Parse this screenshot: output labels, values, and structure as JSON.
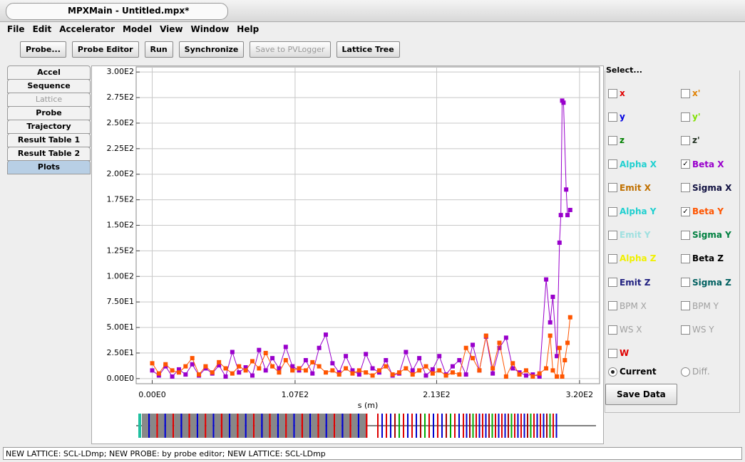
{
  "window": {
    "title": "MPXMain - Untitled.mpx*"
  },
  "menu": [
    "File",
    "Edit",
    "Accelerator",
    "Model",
    "View",
    "Window",
    "Help"
  ],
  "toolbar": [
    {
      "label": "Probe...",
      "enabled": true
    },
    {
      "label": "Probe Editor",
      "enabled": true
    },
    {
      "label": "Run",
      "enabled": true
    },
    {
      "label": "Synchronize",
      "enabled": true
    },
    {
      "label": "Save to PVLogger",
      "enabled": false
    },
    {
      "label": "Lattice Tree",
      "enabled": true
    }
  ],
  "tabs": [
    {
      "label": "Accel",
      "enabled": true,
      "selected": false
    },
    {
      "label": "Sequence",
      "enabled": true,
      "selected": false
    },
    {
      "label": "Lattice",
      "enabled": false,
      "selected": false
    },
    {
      "label": "Probe",
      "enabled": true,
      "selected": false
    },
    {
      "label": "Trajectory",
      "enabled": true,
      "selected": false
    },
    {
      "label": "Result Table 1",
      "enabled": true,
      "selected": false
    },
    {
      "label": "Result Table 2",
      "enabled": true,
      "selected": false
    },
    {
      "label": "Plots",
      "enabled": true,
      "selected": true
    }
  ],
  "chart_data": {
    "type": "line",
    "xlabel": "s (m)",
    "xlim": [
      -12,
      335
    ],
    "ylim": [
      -5,
      305
    ],
    "grid": true,
    "xticks": [
      {
        "value": 0,
        "label": "0.00E0"
      },
      {
        "value": 107,
        "label": "1.07E2"
      },
      {
        "value": 213,
        "label": "2.13E2"
      },
      {
        "value": 320,
        "label": "3.20E2"
      }
    ],
    "yticks": [
      {
        "value": 0,
        "label": "0.00E0"
      },
      {
        "value": 25,
        "label": "2.50E1"
      },
      {
        "value": 50,
        "label": "5.00E1"
      },
      {
        "value": 75,
        "label": "7.50E1"
      },
      {
        "value": 100,
        "label": "1.00E2"
      },
      {
        "value": 125,
        "label": "1.25E2"
      },
      {
        "value": 150,
        "label": "1.50E2"
      },
      {
        "value": 175,
        "label": "1.75E2"
      },
      {
        "value": 200,
        "label": "2.00E2"
      },
      {
        "value": 225,
        "label": "2.25E2"
      },
      {
        "value": 250,
        "label": "2.50E2"
      },
      {
        "value": 275,
        "label": "2.75E2"
      },
      {
        "value": 300,
        "label": "3.00E2"
      }
    ],
    "series": [
      {
        "color": "#9900cc",
        "x": [
          0,
          5,
          10,
          15,
          20,
          25,
          30,
          35,
          40,
          45,
          50,
          55,
          60,
          65,
          70,
          75,
          80,
          85,
          90,
          95,
          100,
          105,
          110,
          115,
          120,
          125,
          130,
          135,
          140,
          145,
          150,
          155,
          160,
          165,
          170,
          175,
          180,
          185,
          190,
          195,
          200,
          205,
          210,
          215,
          220,
          225,
          230,
          235,
          240,
          245,
          250,
          255,
          260,
          265,
          270,
          275,
          280,
          285,
          290,
          295,
          298,
          300,
          303,
          305,
          306,
          307,
          308,
          310,
          311,
          313
        ],
        "values": [
          8,
          3,
          12,
          2,
          9,
          4,
          14,
          3,
          10,
          5,
          13,
          2,
          26,
          6,
          11,
          3,
          28,
          8,
          20,
          10,
          31,
          12,
          8,
          18,
          5,
          30,
          43,
          15,
          6,
          22,
          8,
          4,
          24,
          10,
          6,
          18,
          3,
          5,
          26,
          8,
          20,
          3,
          9,
          22,
          4,
          12,
          18,
          4,
          33,
          8,
          41,
          5,
          30,
          40,
          10,
          6,
          3,
          4,
          2,
          97,
          55,
          80,
          22,
          133,
          160,
          272,
          270,
          185,
          160,
          165
        ]
      },
      {
        "color": "#ff5500",
        "x": [
          0,
          5,
          10,
          15,
          20,
          25,
          30,
          35,
          40,
          45,
          50,
          55,
          60,
          65,
          70,
          75,
          80,
          85,
          90,
          95,
          100,
          105,
          110,
          115,
          120,
          125,
          130,
          135,
          140,
          145,
          150,
          155,
          160,
          165,
          170,
          175,
          180,
          185,
          190,
          195,
          200,
          205,
          210,
          215,
          220,
          225,
          230,
          235,
          240,
          245,
          250,
          255,
          260,
          265,
          270,
          275,
          280,
          285,
          290,
          295,
          298,
          300,
          303,
          305,
          307,
          309,
          311,
          313
        ],
        "values": [
          15,
          5,
          14,
          8,
          6,
          12,
          20,
          4,
          12,
          6,
          16,
          10,
          5,
          12,
          8,
          17,
          10,
          25,
          12,
          6,
          18,
          8,
          10,
          8,
          16,
          12,
          6,
          8,
          4,
          10,
          5,
          8,
          6,
          3,
          8,
          12,
          4,
          6,
          10,
          4,
          8,
          12,
          5,
          8,
          3,
          6,
          4,
          30,
          20,
          8,
          42,
          10,
          35,
          2,
          15,
          4,
          8,
          2,
          5,
          10,
          42,
          8,
          2,
          30,
          2,
          18,
          35,
          60
        ]
      }
    ]
  },
  "select_panel": {
    "title": "Select...",
    "options": [
      {
        "label": "x",
        "color": "#e00000",
        "checked": false,
        "enabled": true
      },
      {
        "label": "x'",
        "color": "#e08000",
        "checked": false,
        "enabled": true
      },
      {
        "label": "y",
        "color": "#0000e0",
        "checked": false,
        "enabled": true
      },
      {
        "label": "y'",
        "color": "#80e000",
        "checked": false,
        "enabled": true
      },
      {
        "label": "z",
        "color": "#008000",
        "checked": false,
        "enabled": true
      },
      {
        "label": "z'",
        "color": "#203020",
        "checked": false,
        "enabled": true
      },
      {
        "label": "Alpha X",
        "color": "#20d0d0",
        "checked": false,
        "enabled": true
      },
      {
        "label": "Beta X",
        "color": "#9900cc",
        "checked": true,
        "enabled": true
      },
      {
        "label": "Emit X",
        "color": "#c07000",
        "checked": false,
        "enabled": true
      },
      {
        "label": "Sigma X",
        "color": "#101040",
        "checked": false,
        "enabled": true
      },
      {
        "label": "Alpha Y",
        "color": "#20d0d0",
        "checked": false,
        "enabled": true
      },
      {
        "label": "Beta Y",
        "color": "#ff5500",
        "checked": true,
        "enabled": true
      },
      {
        "label": "Emit Y",
        "color": "#a0e0e0",
        "checked": false,
        "enabled": true
      },
      {
        "label": "Sigma Y",
        "color": "#008040",
        "checked": false,
        "enabled": true
      },
      {
        "label": "Alpha Z",
        "color": "#f0f000",
        "checked": false,
        "enabled": true
      },
      {
        "label": "Beta Z",
        "color": "#000000",
        "checked": false,
        "enabled": true
      },
      {
        "label": "Emit Z",
        "color": "#202080",
        "checked": false,
        "enabled": true
      },
      {
        "label": "Sigma Z",
        "color": "#006060",
        "checked": false,
        "enabled": true
      },
      {
        "label": "BPM X",
        "color": "#a0a0a0",
        "checked": false,
        "enabled": false
      },
      {
        "label": "BPM Y",
        "color": "#a0a0a0",
        "checked": false,
        "enabled": false
      },
      {
        "label": "WS X",
        "color": "#a0a0a0",
        "checked": false,
        "enabled": false
      },
      {
        "label": "WS Y",
        "color": "#a0a0a0",
        "checked": false,
        "enabled": false
      },
      {
        "label": "W",
        "color": "#e00000",
        "checked": false,
        "enabled": true
      }
    ],
    "radios": [
      {
        "label": "Current",
        "selected": true
      },
      {
        "label": "Diff.",
        "selected": false
      }
    ],
    "button": "Save Data"
  },
  "status": "NEW LATTICE: SCL-LDmp; NEW PROBE: by probe editor; NEW LATTICE: SCL-LDmp"
}
